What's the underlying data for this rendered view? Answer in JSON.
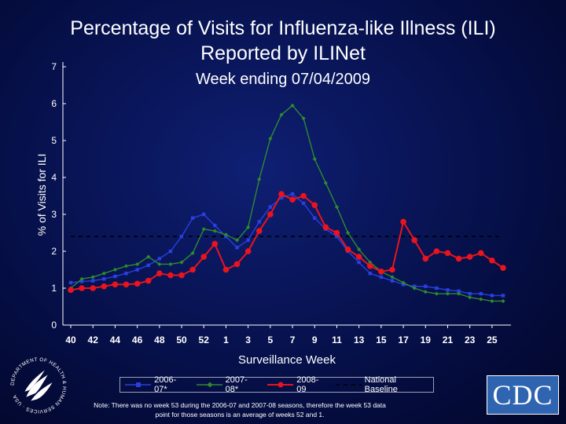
{
  "title_line1": "Percentage of Visits for Influenza-like Illness (ILI)",
  "title_line2": "Reported by ILINet",
  "subtitle": "Week ending 07/04/2009",
  "note": "Note: There was no week 53 during the 2006-07 and 2007-08 seasons, therefore the week 53 data point for those seasons is an average of weeks 52 and 1.",
  "cdc_logo_text": "CDC",
  "hhs_logo_text": "DEPARTMENT OF HEALTH & HUMAN SERVICES · USA",
  "chart_data": {
    "type": "line",
    "title": "Percentage of Visits for Influenza-like Illness (ILI) Reported by ILINet",
    "subtitle": "Week ending 07/04/2009",
    "xlabel": "Surveillance Week",
    "ylabel": "% of Visits for ILI",
    "ylim": [
      0,
      7
    ],
    "yticks": [
      0,
      1,
      2,
      3,
      4,
      5,
      6,
      7
    ],
    "x_tick_labels": [
      "40",
      "42",
      "44",
      "46",
      "48",
      "50",
      "52",
      "1",
      "3",
      "5",
      "7",
      "9",
      "11",
      "13",
      "15",
      "17",
      "19",
      "21",
      "23",
      "25"
    ],
    "weeks": [
      "40",
      "41",
      "42",
      "43",
      "44",
      "45",
      "46",
      "47",
      "48",
      "49",
      "50",
      "51",
      "52",
      "53",
      "1",
      "2",
      "3",
      "4",
      "5",
      "6",
      "7",
      "8",
      "9",
      "10",
      "11",
      "12",
      "13",
      "14",
      "15",
      "16",
      "17",
      "18",
      "19",
      "20",
      "21",
      "22",
      "23",
      "24",
      "25",
      "26"
    ],
    "legend_position": "bottom",
    "series": [
      {
        "name": "2006-07*",
        "color": "#2a3fe0",
        "marker": "square",
        "values": [
          1.15,
          1.18,
          1.2,
          1.25,
          1.32,
          1.4,
          1.5,
          1.62,
          1.8,
          2.0,
          2.4,
          2.9,
          3.0,
          2.7,
          2.4,
          2.1,
          2.3,
          2.8,
          3.2,
          3.45,
          3.55,
          3.3,
          2.9,
          2.6,
          2.4,
          2.0,
          1.7,
          1.4,
          1.3,
          1.2,
          1.1,
          1.05,
          1.05,
          1.0,
          0.95,
          0.92,
          0.85,
          0.85,
          0.8,
          0.8
        ]
      },
      {
        "name": "2007-08*",
        "color": "#2e8b2e",
        "marker": "diamond",
        "values": [
          1.0,
          1.25,
          1.3,
          1.4,
          1.5,
          1.6,
          1.65,
          1.85,
          1.65,
          1.65,
          1.7,
          1.95,
          2.6,
          2.55,
          2.45,
          2.3,
          2.65,
          3.95,
          5.05,
          5.7,
          5.95,
          5.6,
          4.5,
          3.85,
          3.2,
          2.5,
          2.05,
          1.7,
          1.45,
          1.3,
          1.15,
          1.0,
          0.9,
          0.85,
          0.85,
          0.85,
          0.75,
          0.7,
          0.65,
          0.65
        ]
      },
      {
        "name": "2008-09",
        "color": "#e8141e",
        "marker": "circle",
        "values": [
          0.95,
          1.0,
          1.0,
          1.05,
          1.1,
          1.1,
          1.12,
          1.2,
          1.4,
          1.35,
          1.35,
          1.5,
          1.85,
          2.2,
          1.5,
          1.65,
          2.0,
          2.55,
          3.0,
          3.55,
          3.4,
          3.5,
          3.25,
          2.65,
          2.5,
          2.05,
          1.85,
          1.6,
          1.45,
          1.5,
          2.8,
          2.3,
          1.8,
          2.0,
          1.95,
          1.8,
          1.85,
          1.95,
          1.75,
          1.55
        ]
      },
      {
        "name": "National Baseline",
        "color": "#000000",
        "style": "dashed",
        "values": [
          2.4,
          2.4,
          2.4,
          2.4,
          2.4,
          2.4,
          2.4,
          2.4,
          2.4,
          2.4,
          2.4,
          2.4,
          2.4,
          2.4,
          2.4,
          2.4,
          2.4,
          2.4,
          2.4,
          2.4,
          2.4,
          2.4,
          2.4,
          2.4,
          2.4,
          2.4,
          2.4,
          2.4,
          2.4,
          2.4,
          2.4,
          2.4,
          2.4,
          2.4,
          2.4,
          2.4,
          2.4,
          2.4,
          2.4,
          2.4
        ]
      }
    ]
  }
}
